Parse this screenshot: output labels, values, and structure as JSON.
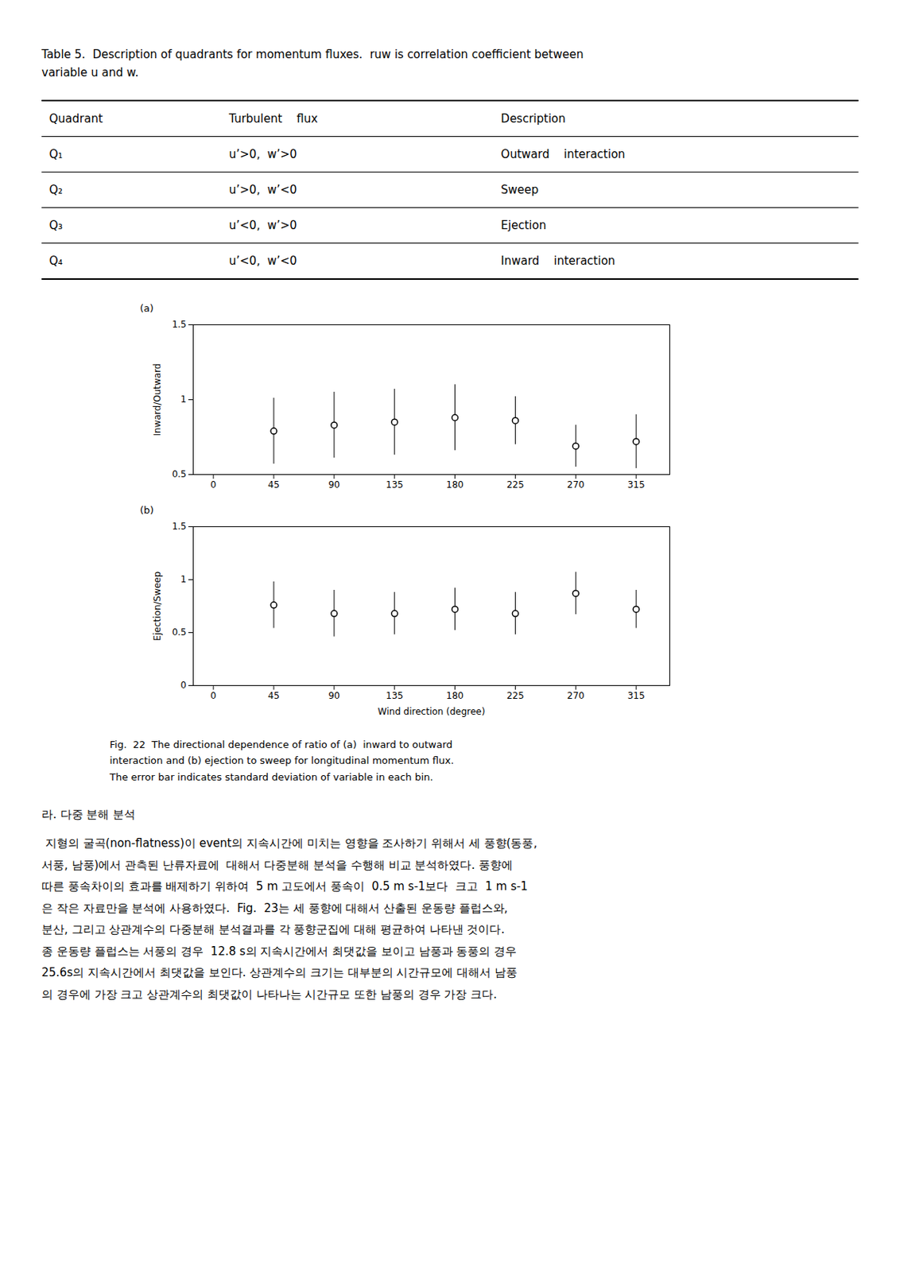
{
  "table": {
    "caption": [
      "Table 5.  Description of quadrants for momentum fluxes.  ruw is correlation coefficient between",
      "variable u and w."
    ],
    "headers": [
      "Quadrant",
      "Turbulent    flux",
      "Description"
    ],
    "rows": [
      [
        "Q₁",
        "u’>0,  w’>0",
        "Outward    interaction"
      ],
      [
        "Q₂",
        "u’>0,  w’<0",
        "Sweep"
      ],
      [
        "Q₃",
        "u’<0,  w’>0",
        "Ejection"
      ],
      [
        "Q₄",
        "u’<0,  w’<0",
        "Inward    interaction"
      ]
    ]
  },
  "chart_data": [
    {
      "type": "scatter",
      "title": "(a)",
      "ylabel": "Inward/Outward",
      "x": [
        45,
        90,
        135,
        180,
        225,
        270,
        315
      ],
      "values": [
        0.79,
        0.83,
        0.85,
        0.88,
        0.86,
        0.69,
        0.72
      ],
      "error": [
        0.22,
        0.22,
        0.22,
        0.22,
        0.16,
        0.14,
        0.18
      ],
      "color": "#000000",
      "marker": "circle",
      "xlim": [
        -15,
        340
      ],
      "xticks": [
        0,
        45,
        90,
        135,
        180,
        225,
        270,
        315
      ],
      "ylim": [
        0.5,
        1.5
      ],
      "yticks": [
        0.5,
        1,
        1.5
      ]
    },
    {
      "type": "scatter",
      "title": "(b)",
      "xlabel": "Wind direction (degree)",
      "ylabel": "Ejection/Sweep",
      "x": [
        45,
        90,
        135,
        180,
        225,
        270,
        315
      ],
      "values": [
        0.76,
        0.68,
        0.68,
        0.72,
        0.68,
        0.87,
        0.72
      ],
      "error": [
        0.22,
        0.22,
        0.2,
        0.2,
        0.2,
        0.2,
        0.18
      ],
      "color": "#000000",
      "marker": "circle",
      "xlim": [
        -15,
        340
      ],
      "xticks": [
        0,
        45,
        90,
        135,
        180,
        225,
        270,
        315
      ],
      "ylim": [
        0,
        1.5
      ],
      "yticks": [
        0,
        0.5,
        1,
        1.5
      ]
    }
  ],
  "figure_caption": [
    "Fig.  22  The directional dependence of ratio of (a)  inward to outward",
    "interaction and (b) ejection to sweep for longitudinal momentum flux.",
    "The error bar indicates standard deviation of variable in each bin."
  ],
  "section_title": "라. 다중 분해 분석",
  "section_lines": [
    " 지형의 굴곡(non-flatness)이 event의 지속시간에 미치는 영향을 조사하기 위해서 세 풍향(동풍,",
    "서풍, 남풍)에서 관측된 난류자료에  대해서 다중분해 분석을 수행해 비교 분석하였다. 풍향에",
    "따른 풍속차이의 효과를 배제하기 위하여  5 m 고도에서 풍속이  0.5 m s-1보다  크고  1 m s-1",
    "은 작은 자료만을 분석에 사용하였다.  Fig.  23는 세 풍향에 대해서 산출된 운동량 플럽스와,",
    "분산, 그리고 상관계수의 다중분해 분석결과를 각 풍향군집에 대해 평균하여 나타낸 것이다.",
    "종 운동량 플럽스는 서풍의 경우  12.8 s의 지속시간에서 최댓값을 보이고 남풍과 동풍의 경우",
    "25.6s의 지속시간에서 최댓값을 보인다. 상관계수의 크기는 대부분의 시간규모에 대해서 남풍",
    "의 경우에 가장 크고 상관계수의 최댓값이 나타나는 시간규모 또한 남풍의 경우 가장 크다."
  ]
}
